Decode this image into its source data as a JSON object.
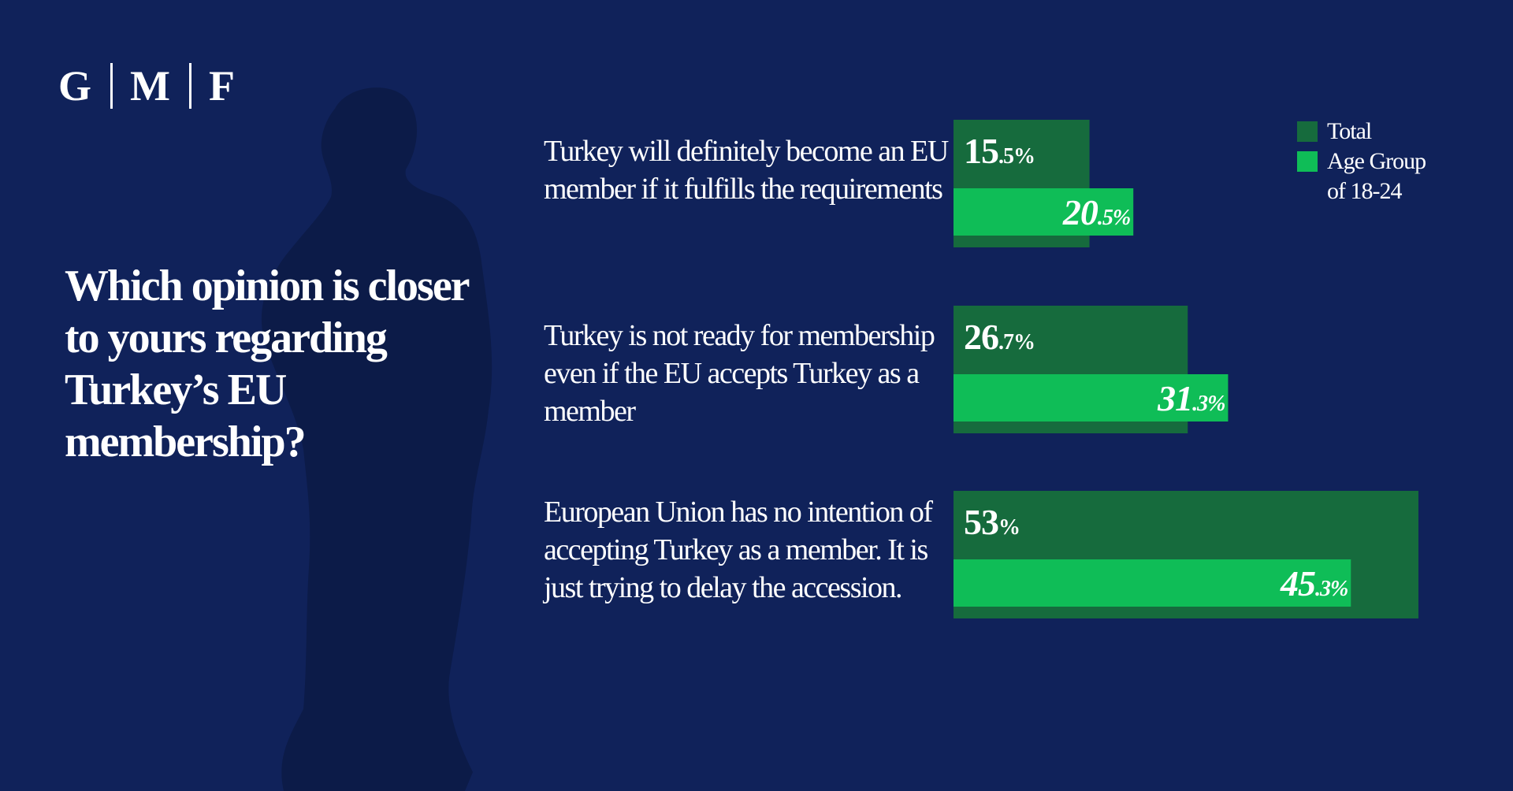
{
  "brand": {
    "letters": [
      "G",
      "M",
      "F"
    ]
  },
  "question": "Which opinion is closer to yours regarding Turkey’s EU membership?",
  "colors": {
    "background": "#10225a",
    "silhouette": "#0c1b48",
    "total": "#166b3d",
    "age_group": "#0fbd57",
    "text": "#ffffff"
  },
  "legend": [
    {
      "label": "Total",
      "series": "total"
    },
    {
      "label": "Age Group of 18-24",
      "series": "age_group"
    }
  ],
  "chart_data": {
    "type": "bar",
    "orientation": "horizontal",
    "categories": [
      "Turkey will definitely become an EU member if it fulfills the requirements",
      "Turkey is not ready for membership even if the EU accepts Turkey as a member",
      "European Union has no intention of accepting Turkey as a member. It is just trying to delay the accession."
    ],
    "series": [
      {
        "name": "Total",
        "values": [
          15.5,
          26.7,
          53
        ]
      },
      {
        "name": "Age Group of 18-24",
        "values": [
          20.5,
          31.3,
          45.3
        ]
      }
    ],
    "value_labels": [
      [
        "15.5",
        "26.7",
        "53"
      ],
      [
        "20.5",
        "31.3",
        "45.3"
      ]
    ],
    "unit": "%",
    "xlim": [
      0,
      53
    ],
    "grid": false,
    "legend_position": "top-right"
  }
}
